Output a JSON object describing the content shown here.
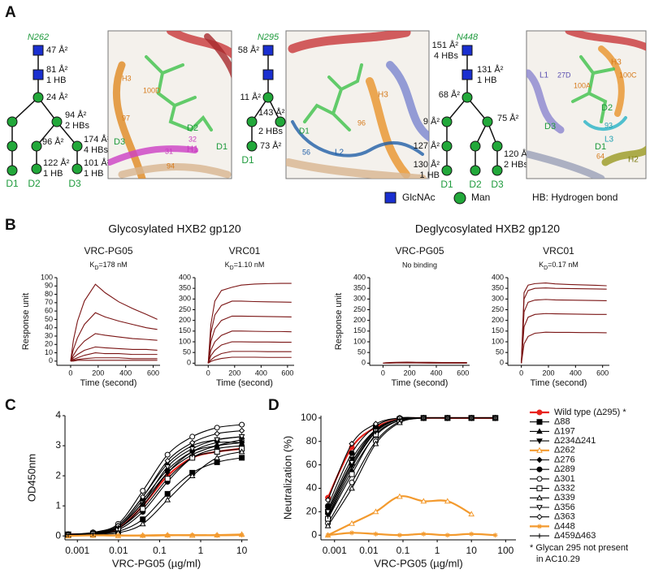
{
  "panel_labels": [
    "A",
    "B",
    "C",
    "D"
  ],
  "glycans": [
    {
      "name": "N262",
      "labels": [
        "47 Å²",
        "81 Å²",
        "1 HB",
        "24 Å²",
        "94 Å²",
        "2 HBs",
        "96 Å²",
        "174 Å²",
        "4 HBs",
        "122 Å²",
        "1 HB",
        "101 Å²",
        "1 HB"
      ],
      "domains": [
        "D1",
        "D2",
        "D3"
      ]
    },
    {
      "name": "N295",
      "labels": [
        "58 Å²",
        "11 Å²",
        "143 Å²",
        "2 HBs",
        "73 Å²"
      ],
      "domains": [
        "D1"
      ]
    },
    {
      "name": "N448",
      "labels": [
        "151 Å²",
        "4 HBs",
        "131 Å²",
        "1 HB",
        "68 Å²",
        "9 Å²",
        "75 Å²",
        "127 Å²",
        "130 Å²",
        "1 HB",
        "120 Å²",
        "2 HBs"
      ],
      "domains": [
        "D1",
        "D2",
        "D3"
      ]
    }
  ],
  "structures": [
    {
      "labels": [
        "H3",
        "100D",
        "97",
        "D3",
        "D2",
        "D1",
        "H1",
        "31",
        "32",
        "94"
      ]
    },
    {
      "labels": [
        "H3",
        "96",
        "D1",
        "L2",
        "56"
      ]
    },
    {
      "labels": [
        "L1",
        "27D",
        "100A",
        "100C",
        "H3",
        "D2",
        "D3",
        "93",
        "L3",
        "D1",
        "64",
        "H2"
      ]
    }
  ],
  "legend_A": [
    "GlcNAc",
    "Man",
    "HB: Hydrogen bond"
  ],
  "group_titles": [
    "Glycosylated HXB2 gp120",
    "Deglycosylated HXB2 gp120"
  ],
  "footnote": [
    "* Glycan 295 not present",
    "in AC10.29"
  ],
  "chart_data": [
    {
      "type": "line",
      "title": "VRC-PG05",
      "subtitle_parts": [
        "K",
        "D",
        "=178 nM"
      ],
      "xlabel": "Time (second)",
      "ylabel": "Response unit",
      "x": [
        0,
        20,
        50,
        100,
        180,
        250,
        350,
        450,
        550,
        630
      ],
      "color": "#7a1414",
      "series": [
        {
          "values": [
            0,
            25,
            48,
            72,
            92,
            82,
            71,
            63,
            56,
            50
          ]
        },
        {
          "values": [
            0,
            14,
            28,
            44,
            58,
            53,
            48,
            44,
            40,
            38
          ]
        },
        {
          "values": [
            0,
            7,
            15,
            24,
            33,
            31,
            29,
            27,
            26,
            25
          ]
        },
        {
          "values": [
            0,
            4,
            8,
            13,
            17,
            16,
            15,
            14,
            14,
            13
          ]
        },
        {
          "values": [
            0,
            2,
            4,
            7,
            10,
            9,
            9,
            8,
            8,
            8
          ]
        },
        {
          "values": [
            0,
            1,
            2,
            3,
            4,
            4,
            4,
            3,
            3,
            3
          ]
        },
        {
          "values": [
            0,
            0,
            1,
            1,
            1,
            1,
            1,
            1,
            1,
            1
          ]
        }
      ],
      "xlim": [
        -100,
        650
      ],
      "ylim": [
        -5,
        100
      ],
      "xticks": [
        0,
        200,
        400,
        600
      ],
      "yticks": [
        0,
        10,
        20,
        30,
        40,
        50,
        60,
        70,
        80,
        90,
        100
      ]
    },
    {
      "type": "line",
      "title": "VRC01",
      "subtitle_parts": [
        "K",
        "D",
        "=1.10 nM"
      ],
      "xlabel": "Time (second)",
      "x": [
        0,
        20,
        50,
        100,
        180,
        250,
        350,
        450,
        550,
        630
      ],
      "color": "#7a1414",
      "series": [
        {
          "values": [
            0,
            180,
            290,
            340,
            355,
            365,
            370,
            372,
            373,
            373
          ]
        },
        {
          "values": [
            0,
            140,
            225,
            270,
            290,
            290,
            288,
            287,
            286,
            285
          ]
        },
        {
          "values": [
            0,
            100,
            160,
            200,
            220,
            220,
            219,
            218,
            217,
            216
          ]
        },
        {
          "values": [
            0,
            60,
            100,
            130,
            150,
            150,
            149,
            148,
            148,
            147
          ]
        },
        {
          "values": [
            0,
            35,
            60,
            85,
            100,
            100,
            99,
            99,
            98,
            98
          ]
        },
        {
          "values": [
            0,
            15,
            30,
            45,
            55,
            55,
            55,
            54,
            54,
            54
          ]
        },
        {
          "values": [
            0,
            8,
            15,
            22,
            28,
            28,
            28,
            27,
            27,
            27
          ]
        }
      ],
      "xlim": [
        -100,
        650
      ],
      "ylim": [
        -10,
        400
      ],
      "xticks": [
        0,
        200,
        400,
        600
      ],
      "yticks": [
        0,
        50,
        100,
        150,
        200,
        250,
        300,
        350,
        400
      ]
    },
    {
      "type": "line",
      "title": "VRC-PG05",
      "subtitle": "No binding",
      "xlabel": "Time (second)",
      "ylabel": "Response unit",
      "x": [
        0,
        20,
        50,
        100,
        180,
        250,
        350,
        450,
        550,
        630
      ],
      "color": "#7a1414",
      "series": [
        {
          "values": [
            0,
            2,
            3,
            4,
            5,
            4,
            4,
            3,
            3,
            3
          ]
        },
        {
          "values": [
            0,
            1,
            1,
            2,
            2,
            2,
            2,
            2,
            2,
            1
          ]
        },
        {
          "values": [
            0,
            0,
            0,
            1,
            1,
            1,
            0,
            0,
            0,
            0
          ]
        }
      ],
      "xlim": [
        -100,
        650
      ],
      "ylim": [
        -10,
        400
      ],
      "xticks": [
        0,
        200,
        400,
        600
      ],
      "yticks": [
        0,
        50,
        100,
        150,
        200,
        250,
        300,
        350,
        400
      ]
    },
    {
      "type": "line",
      "title": "VRC01",
      "subtitle_parts": [
        "K",
        "D",
        "=0.17 nM"
      ],
      "xlabel": "Time (second)",
      "x": [
        0,
        20,
        50,
        100,
        180,
        250,
        350,
        450,
        550,
        630
      ],
      "color": "#7a1414",
      "series": [
        {
          "values": [
            0,
            330,
            365,
            372,
            375,
            371,
            368,
            366,
            364,
            362
          ]
        },
        {
          "values": [
            0,
            300,
            340,
            350,
            352,
            350,
            349,
            348,
            347,
            346
          ]
        },
        {
          "values": [
            0,
            240,
            285,
            295,
            298,
            296,
            295,
            294,
            293,
            292
          ]
        },
        {
          "values": [
            0,
            170,
            215,
            228,
            232,
            231,
            230,
            229,
            228,
            228
          ]
        },
        {
          "values": [
            0,
            90,
            125,
            140,
            145,
            144,
            144,
            143,
            143,
            142
          ]
        }
      ],
      "xlim": [
        -100,
        650
      ],
      "ylim": [
        -10,
        400
      ],
      "xticks": [
        0,
        200,
        400,
        600
      ],
      "yticks": [
        0,
        50,
        100,
        150,
        200,
        250,
        300,
        350,
        400
      ]
    },
    {
      "type": "line",
      "xscale": "log",
      "xlabel": "VRC-PG05 (µg/ml)",
      "ylabel": "OD450nm",
      "x": [
        0.0006,
        0.0024,
        0.0098,
        0.039,
        0.156,
        0.625,
        2.5,
        10
      ],
      "series": [
        {
          "color": "#e8231c",
          "marker": "circle",
          "filled": true,
          "values": [
            0.05,
            0.08,
            0.25,
            1.0,
            2.0,
            2.6,
            2.8,
            2.9
          ]
        },
        {
          "color": "#000000",
          "marker": "square",
          "filled": true,
          "values": [
            0.05,
            0.07,
            0.15,
            0.55,
            1.4,
            2.1,
            2.45,
            2.6
          ]
        },
        {
          "color": "#000000",
          "marker": "triangle",
          "filled": true,
          "values": [
            0.05,
            0.1,
            0.35,
            1.3,
            2.4,
            3.0,
            3.2,
            3.3
          ]
        },
        {
          "color": "#000000",
          "marker": "triangle-down",
          "filled": true,
          "values": [
            0.05,
            0.08,
            0.25,
            1.0,
            2.1,
            2.8,
            3.1,
            3.1
          ]
        },
        {
          "color": "#f39a2e",
          "marker": "triangle",
          "filled": false,
          "values": [
            0,
            0.02,
            0.01,
            0.02,
            0.03,
            0.02,
            0.03,
            0.05
          ]
        },
        {
          "color": "#000000",
          "marker": "diamond",
          "filled": true,
          "values": [
            0.05,
            0.1,
            0.3,
            1.2,
            2.2,
            2.8,
            3.0,
            3.1
          ]
        },
        {
          "color": "#000000",
          "marker": "circle",
          "filled": true,
          "values": [
            0.05,
            0.06,
            0.2,
            0.8,
            1.8,
            2.6,
            2.9,
            3.0
          ]
        },
        {
          "color": "#000000",
          "marker": "circle",
          "filled": false,
          "values": [
            0.06,
            0.12,
            0.4,
            1.5,
            2.7,
            3.3,
            3.6,
            3.7
          ]
        },
        {
          "color": "#000000",
          "marker": "square",
          "filled": false,
          "values": [
            0.05,
            0.08,
            0.25,
            0.9,
            1.9,
            2.6,
            2.8,
            2.9
          ]
        },
        {
          "color": "#000000",
          "marker": "triangle",
          "filled": false,
          "values": [
            0.04,
            0.05,
            0.1,
            0.4,
            1.2,
            2.0,
            2.6,
            2.8
          ]
        },
        {
          "color": "#000000",
          "marker": "triangle-down",
          "filled": false,
          "values": [
            0.05,
            0.08,
            0.3,
            1.1,
            2.3,
            2.9,
            3.2,
            3.3
          ]
        },
        {
          "color": "#000000",
          "marker": "diamond",
          "filled": false,
          "values": [
            0.05,
            0.1,
            0.35,
            1.3,
            2.5,
            3.1,
            3.4,
            3.5
          ]
        },
        {
          "color": "#f39a2e",
          "marker": "star",
          "filled": false,
          "values": [
            0.01,
            0.02,
            0.02,
            0.01,
            0.02,
            0.03,
            0.02,
            0.03
          ]
        },
        {
          "color": "#000000",
          "marker": "plus",
          "filled": true,
          "values": [
            0.05,
            0.08,
            0.3,
            1.1,
            2.1,
            2.7,
            3.0,
            3.2
          ]
        }
      ],
      "xlim": [
        0.0005,
        14
      ],
      "ylim": [
        -0.13,
        4
      ],
      "xticks": [
        0.001,
        0.01,
        0.1,
        1,
        10
      ],
      "yticks": [
        0,
        1,
        2,
        3,
        4
      ]
    },
    {
      "type": "line",
      "xscale": "log",
      "xlabel": "VRC-PG05 (µg/ml)",
      "ylabel": "Neutralization (%)",
      "legend": "right",
      "x": [
        0.00064,
        0.0032,
        0.016,
        0.08,
        0.4,
        2,
        10,
        50
      ],
      "series": [
        {
          "name": "Wild type (Δ295) *",
          "color": "#e8231c",
          "marker": "circle",
          "filled": true,
          "values": [
            32,
            75,
            92,
            99,
            100,
            100,
            100,
            100
          ]
        },
        {
          "name": "Δ88",
          "color": "#000000",
          "marker": "square",
          "filled": true,
          "values": [
            20,
            62,
            90,
            99,
            100,
            100,
            100,
            100
          ]
        },
        {
          "name": "Δ197",
          "color": "#000000",
          "marker": "triangle",
          "filled": true,
          "values": [
            15,
            55,
            85,
            98,
            100,
            100,
            100,
            100
          ]
        },
        {
          "name": "Δ234Δ241",
          "color": "#000000",
          "marker": "triangle-down",
          "filled": true,
          "values": [
            22,
            65,
            90,
            99,
            100,
            100,
            100,
            100
          ]
        },
        {
          "name": "Δ262",
          "color": "#f39a2e",
          "marker": "triangle",
          "filled": false,
          "values": [
            0,
            10,
            20,
            33,
            29,
            29,
            18,
            null
          ]
        },
        {
          "name": "Δ276",
          "color": "#000000",
          "marker": "diamond",
          "filled": true,
          "values": [
            18,
            60,
            88,
            99,
            100,
            100,
            100,
            100
          ]
        },
        {
          "name": "Δ289",
          "color": "#000000",
          "marker": "circle",
          "filled": true,
          "values": [
            25,
            70,
            93,
            100,
            100,
            100,
            100,
            100
          ]
        },
        {
          "name": "Δ301",
          "color": "#000000",
          "marker": "circle",
          "filled": false,
          "values": [
            10,
            45,
            80,
            97,
            100,
            100,
            100,
            100
          ]
        },
        {
          "name": "Δ332",
          "color": "#000000",
          "marker": "square",
          "filled": false,
          "values": [
            14,
            52,
            86,
            98,
            100,
            100,
            100,
            100
          ]
        },
        {
          "name": "Δ339",
          "color": "#000000",
          "marker": "triangle",
          "filled": false,
          "values": [
            8,
            40,
            78,
            96,
            100,
            100,
            100,
            100
          ]
        },
        {
          "name": "Δ356",
          "color": "#000000",
          "marker": "triangle-down",
          "filled": false,
          "values": [
            20,
            62,
            89,
            99,
            100,
            100,
            100,
            100
          ]
        },
        {
          "name": "Δ363",
          "color": "#000000",
          "marker": "diamond",
          "filled": false,
          "values": [
            30,
            78,
            95,
            100,
            100,
            100,
            100,
            100
          ]
        },
        {
          "name": "Δ448",
          "color": "#f39a2e",
          "marker": "star",
          "filled": false,
          "values": [
            0,
            2,
            1,
            0,
            1,
            0,
            1,
            0
          ]
        },
        {
          "name": "Δ459Δ463",
          "color": "#000000",
          "marker": "plus",
          "filled": true,
          "values": [
            16,
            58,
            88,
            99,
            100,
            100,
            100,
            100
          ]
        }
      ],
      "xlim": [
        0.0004,
        200
      ],
      "ylim": [
        -4,
        102
      ],
      "xticks": [
        0.001,
        0.01,
        0.1,
        1,
        10,
        100
      ],
      "yticks": [
        0,
        20,
        40,
        60,
        80,
        100
      ]
    }
  ]
}
